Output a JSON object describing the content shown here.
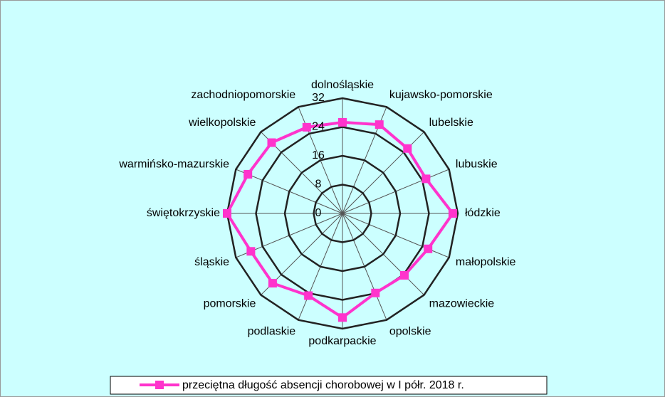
{
  "chart_data": {
    "type": "radar",
    "categories": [
      "dolnośląskie",
      "kujawsko-pomorskie",
      "lubelskie",
      "lubuskie",
      "łódzkie",
      "małopolskie",
      "mazowieckie",
      "opolskie",
      "podkarpackie",
      "podlaskie",
      "pomorskie",
      "śląskie",
      "świętokrzyskie",
      "warmińsko-mazurskie",
      "wielkopolskie",
      "zachodniopomorskie"
    ],
    "series": [
      {
        "name": "przeciętna długość absencji chorobowej w I półr. 2018 r.",
        "color": "#ff33cc",
        "values": [
          25.3,
          26.7,
          25.5,
          25.1,
          30.6,
          25.7,
          24.3,
          23.9,
          28.9,
          24.7,
          27.4,
          27.5,
          32,
          28.4,
          27.8,
          25.9
        ]
      }
    ],
    "rlim": [
      0,
      32
    ],
    "rticks": [
      0,
      8,
      16,
      24,
      32
    ],
    "grid": true,
    "legend": "bottom"
  }
}
